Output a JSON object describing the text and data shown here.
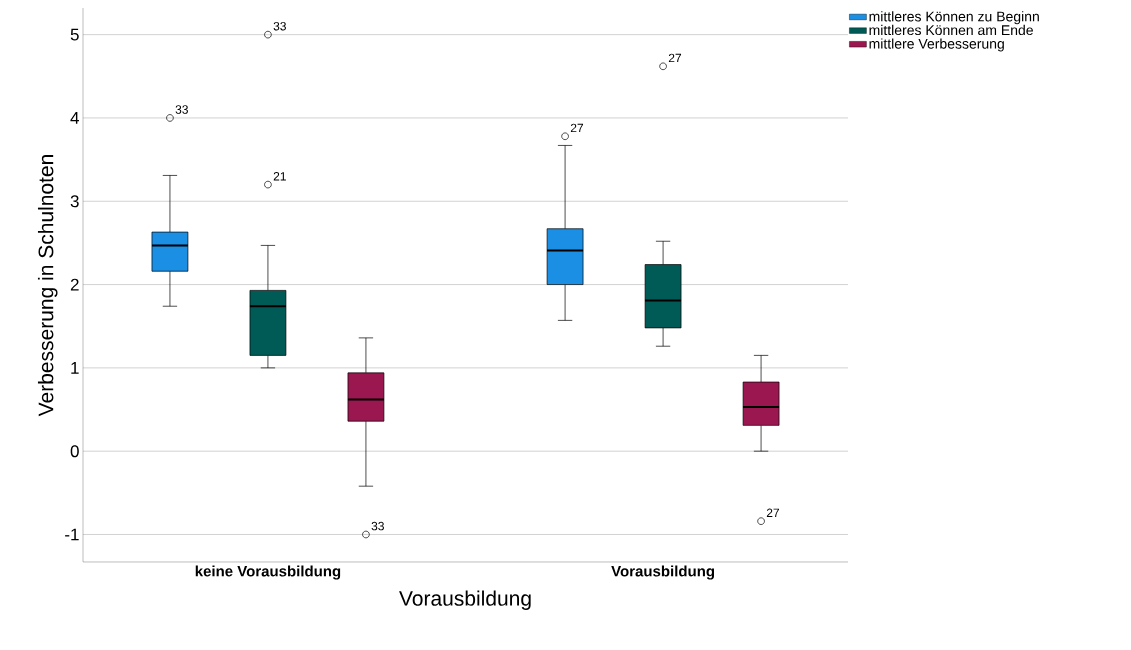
{
  "chart_data": {
    "type": "box",
    "xlabel": "Vorausbildung",
    "ylabel": "Verbesserung in Schulnoten",
    "categories": [
      "keine Vorausbildung",
      "Vorausbildung"
    ],
    "series": [
      {
        "name": "mittleres Können zu Beginn",
        "color": "#1a8fe3",
        "boxes": [
          {
            "low": 1.74,
            "q1": 2.16,
            "median": 2.47,
            "q3": 2.63,
            "high": 3.31,
            "outliers": [
              4.0
            ]
          },
          {
            "low": 1.57,
            "q1": 2.0,
            "median": 2.41,
            "q3": 2.67,
            "high": 3.67,
            "outliers": [
              3.78
            ]
          }
        ]
      },
      {
        "name": "mittleres Können am Ende",
        "color": "#005a55",
        "boxes": [
          {
            "low": 1.0,
            "q1": 1.15,
            "median": 1.74,
            "q3": 1.93,
            "high": 2.47,
            "outliers": [
              3.2,
              5.0
            ]
          },
          {
            "low": 1.26,
            "q1": 1.48,
            "median": 1.81,
            "q3": 2.24,
            "high": 2.52,
            "outliers": [
              4.62
            ]
          }
        ]
      },
      {
        "name": "mittlere Verbesserung",
        "color": "#9b1750",
        "boxes": [
          {
            "low": -0.42,
            "q1": 0.36,
            "median": 0.62,
            "q3": 0.94,
            "high": 1.36,
            "outliers": [
              -1.0
            ]
          },
          {
            "low": 0.0,
            "q1": 0.31,
            "median": 0.53,
            "q3": 0.83,
            "high": 1.15,
            "outliers": [
              -0.84
            ]
          }
        ]
      }
    ],
    "annotations": [
      "33",
      "27",
      "21",
      "33",
      "27",
      "33",
      "27"
    ],
    "ylim": [
      -1.33,
      5.32
    ],
    "yticks": [
      -1,
      0,
      1,
      2,
      3,
      4,
      5
    ],
    "grid": "y",
    "legend": "top right",
    "marker": "circle"
  }
}
